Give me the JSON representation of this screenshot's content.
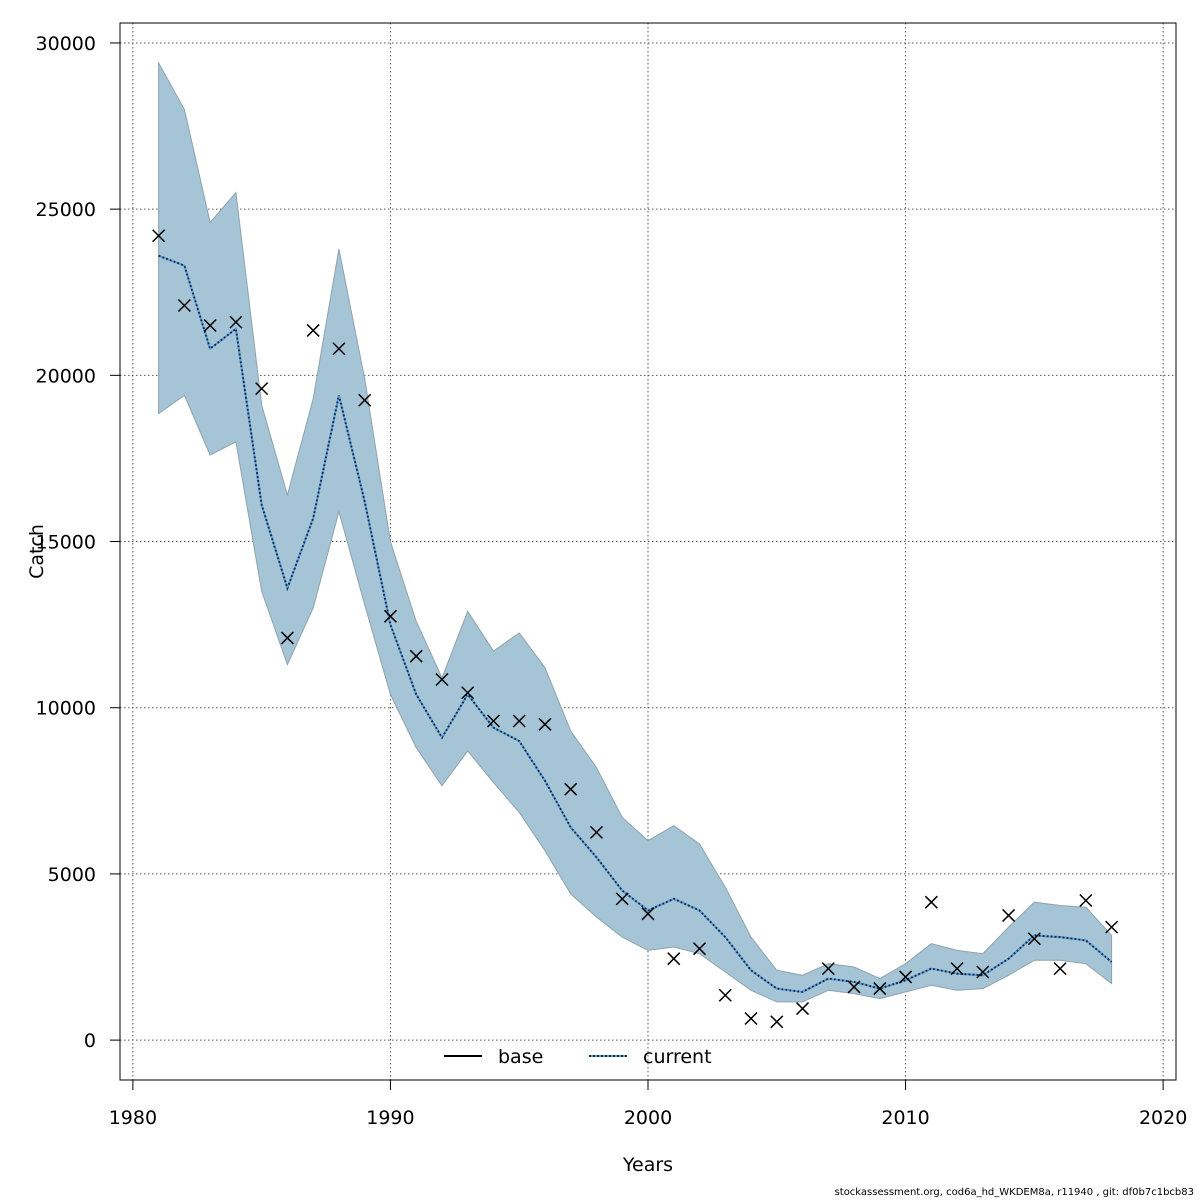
{
  "chart_data": {
    "type": "line",
    "xlabel": "Years",
    "ylabel": "Catch",
    "xlim": [
      1979.5,
      2020.5
    ],
    "ylim": [
      -1200,
      30600
    ],
    "x_ticks": [
      1980,
      1990,
      2000,
      2010,
      2020
    ],
    "y_ticks": [
      0,
      5000,
      10000,
      15000,
      20000,
      25000,
      30000
    ],
    "grid": true,
    "legend_position": "bottom-center",
    "colors": {
      "band": "#a5c4d6",
      "band_edge": "#8fa3ad",
      "current_line": "#0a2a54",
      "current_dots": "#5aa0d8",
      "base_line": "#000000",
      "grid": "#555555"
    },
    "series": [
      {
        "name": "base",
        "style": "solid"
      },
      {
        "name": "current",
        "style": "dotted"
      }
    ],
    "x": [
      1981,
      1982,
      1983,
      1984,
      1985,
      1986,
      1987,
      1988,
      1989,
      1990,
      1991,
      1992,
      1993,
      1994,
      1995,
      1996,
      1997,
      1998,
      1999,
      2000,
      2001,
      2002,
      2003,
      2004,
      2005,
      2006,
      2007,
      2008,
      2009,
      2010,
      2011,
      2012,
      2013,
      2014,
      2015,
      2016,
      2017,
      2018
    ],
    "estimate": [
      23600,
      23300,
      20800,
      21400,
      16100,
      13600,
      15700,
      19400,
      16200,
      12500,
      10400,
      9100,
      10400,
      9400,
      9000,
      7800,
      6400,
      5500,
      4500,
      3900,
      4250,
      3900,
      3100,
      2100,
      1550,
      1450,
      1850,
      1750,
      1550,
      1800,
      2150,
      2000,
      1950,
      2450,
      3150,
      3100,
      3000,
      2350
    ],
    "upper": [
      29400,
      28000,
      24600,
      25500,
      19100,
      16400,
      19300,
      23800,
      19900,
      15000,
      12600,
      10900,
      12900,
      11700,
      12250,
      11200,
      9300,
      8200,
      6700,
      6000,
      6450,
      5900,
      4600,
      3100,
      2100,
      1950,
      2300,
      2200,
      1850,
      2300,
      2900,
      2700,
      2600,
      3400,
      4150,
      4050,
      4000,
      3150
    ],
    "lower": [
      18850,
      19400,
      17600,
      18000,
      13500,
      11300,
      13000,
      15900,
      13100,
      10400,
      8800,
      7650,
      8700,
      7750,
      6850,
      5700,
      4400,
      3700,
      3100,
      2700,
      2800,
      2600,
      2050,
      1500,
      1150,
      1150,
      1500,
      1400,
      1250,
      1450,
      1650,
      1500,
      1550,
      1950,
      2400,
      2400,
      2300,
      1700
    ],
    "observed": [
      24200,
      22100,
      21500,
      21600,
      19600,
      12100,
      21350,
      20800,
      19250,
      12750,
      11550,
      10850,
      10450,
      9600,
      9600,
      9500,
      7550,
      6250,
      4250,
      3800,
      2450,
      2750,
      1350,
      650,
      550,
      950,
      2150,
      1600,
      1550,
      1900,
      4150,
      2150,
      2050,
      3750,
      3050,
      2150,
      4200,
      3400
    ]
  },
  "footer": "stockassessment.org, cod6a_hd_WKDEM8a, r11940 , git: df0b7c1bcb83"
}
